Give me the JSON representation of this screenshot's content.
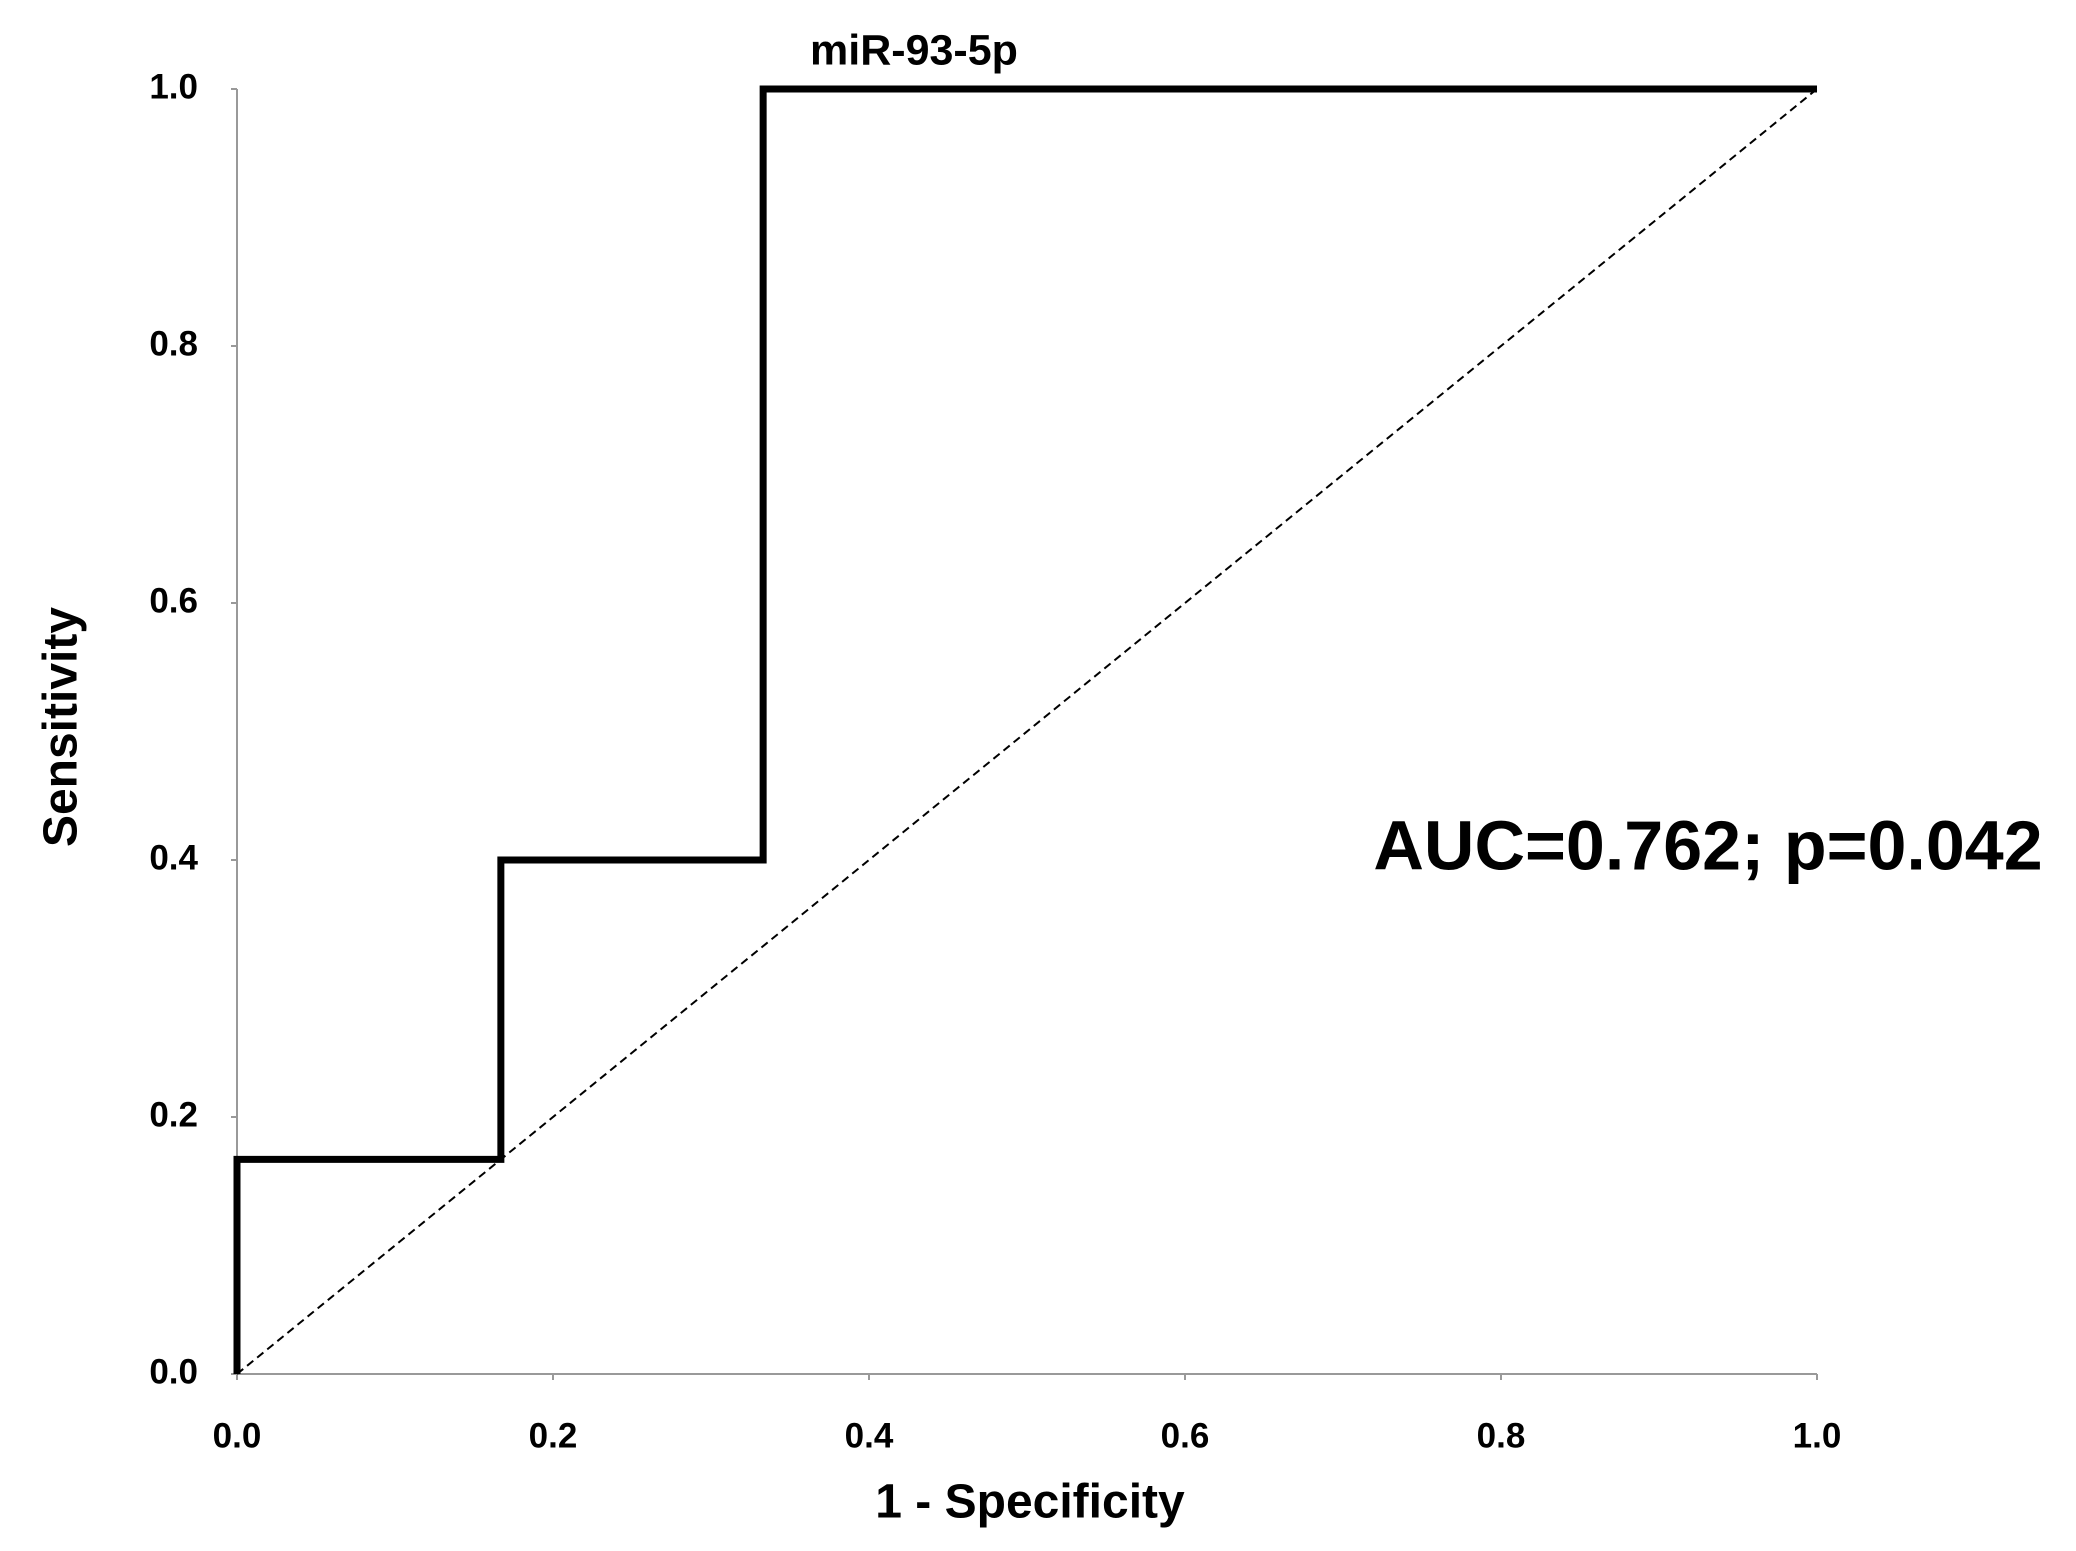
{
  "chart_data": {
    "type": "line",
    "title": "miR-93-5p",
    "xlabel": "1 - Specificity",
    "ylabel": "Sensitivity",
    "annotation": "AUC=0.762; p=0.042",
    "series": [
      {
        "x": [
          0,
          0,
          0.167,
          0.167,
          0.333,
          0.333,
          1
        ],
        "values": [
          0,
          0.167,
          0.167,
          0.4,
          0.4,
          1,
          1
        ],
        "color": "#000000",
        "dashed": false
      },
      {
        "x": [
          0,
          1
        ],
        "values": [
          0,
          1
        ],
        "color": "#000000",
        "dashed": true
      }
    ],
    "xlim": [
      0,
      1
    ],
    "ylim": [
      0,
      1
    ],
    "xticks": [
      {
        "value": 0,
        "label": "0.0"
      },
      0.2,
      0.4,
      0.6,
      0.8,
      {
        "value": 1,
        "label": "1.0"
      }
    ],
    "yticks": [
      {
        "value": 0,
        "label": "0.0"
      },
      0.2,
      0.4,
      0.6,
      0.8,
      {
        "value": 1,
        "label": "1.0"
      }
    ],
    "grid": false
  }
}
